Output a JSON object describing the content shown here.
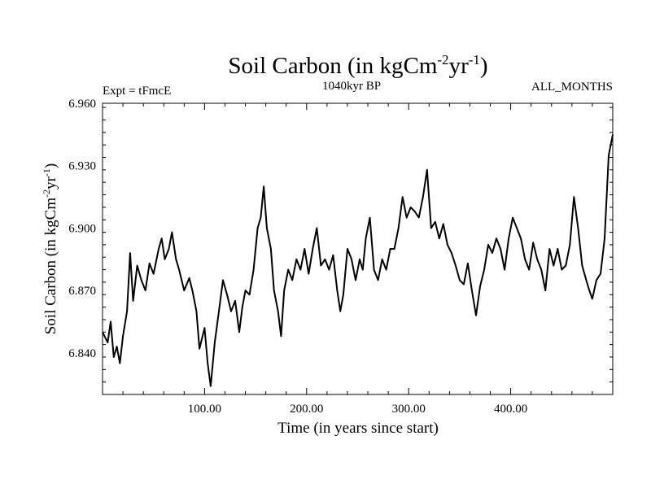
{
  "chart_data": {
    "type": "line",
    "title": {
      "prefix": "Soil Carbon (in kgCm",
      "exp1": "-2",
      "mid": "yr",
      "exp2": "-1",
      "suffix": ")"
    },
    "subtitle": "1040kyr BP",
    "left_annotation": "Expt = tFmcE",
    "right_annotation": "ALL_MONTHS",
    "xlabel": "Time (in years since start)",
    "ylabel": {
      "prefix": "Soil Carbon (in kgCm",
      "exp1": "-2",
      "mid": "yr",
      "exp2": "-1",
      "suffix": ")"
    },
    "xlim": [
      0,
      500
    ],
    "ylim": [
      6.82,
      6.96
    ],
    "xticks": [
      100,
      200,
      300,
      400
    ],
    "xtick_labels": [
      "100.00",
      "200.00",
      "300.00",
      "400.00"
    ],
    "yticks": [
      6.84,
      6.87,
      6.9,
      6.93,
      6.96
    ],
    "ytick_labels": [
      "6.840",
      "6.870",
      "6.900",
      "6.930",
      "6.960"
    ],
    "series": [
      {
        "name": "Soil Carbon",
        "color": "#000000",
        "x": [
          0,
          5,
          8,
          11,
          14,
          17,
          20,
          24,
          27,
          30,
          34,
          38,
          42,
          46,
          50,
          55,
          58,
          61,
          65,
          68,
          72,
          75,
          80,
          85,
          88,
          92,
          95,
          98,
          100,
          103,
          106,
          110,
          114,
          118,
          122,
          126,
          130,
          134,
          137,
          140,
          144,
          148,
          152,
          155,
          158,
          161,
          165,
          168,
          172,
          175,
          178,
          182,
          186,
          190,
          194,
          198,
          202,
          206,
          210,
          214,
          218,
          222,
          226,
          230,
          233,
          236,
          240,
          244,
          248,
          252,
          255,
          258,
          262,
          266,
          270,
          274,
          278,
          282,
          286,
          290,
          294,
          298,
          302,
          306,
          310,
          314,
          318,
          322,
          326,
          330,
          334,
          338,
          342,
          346,
          350,
          354,
          358,
          362,
          366,
          370,
          374,
          378,
          382,
          386,
          390,
          394,
          398,
          402,
          406,
          410,
          414,
          418,
          422,
          426,
          430,
          434,
          438,
          442,
          446,
          450,
          454,
          458,
          462,
          466,
          470,
          474,
          477,
          480,
          484,
          488,
          492,
          496,
          500
        ],
        "values": [
          6.85,
          6.845,
          6.855,
          6.838,
          6.843,
          6.835,
          6.848,
          6.86,
          6.888,
          6.865,
          6.882,
          6.875,
          6.87,
          6.883,
          6.878,
          6.89,
          6.895,
          6.885,
          6.89,
          6.898,
          6.885,
          6.88,
          6.87,
          6.876,
          6.87,
          6.86,
          6.842,
          6.848,
          6.852,
          6.835,
          6.824,
          6.845,
          6.86,
          6.875,
          6.868,
          6.86,
          6.865,
          6.85,
          6.862,
          6.87,
          6.868,
          6.88,
          6.9,
          6.905,
          6.92,
          6.9,
          6.89,
          6.87,
          6.86,
          6.848,
          6.87,
          6.88,
          6.875,
          6.885,
          6.88,
          6.89,
          6.878,
          6.89,
          6.9,
          6.882,
          6.885,
          6.88,
          6.887,
          6.87,
          6.86,
          6.868,
          6.89,
          6.885,
          6.875,
          6.885,
          6.88,
          6.895,
          6.905,
          6.88,
          6.875,
          6.885,
          6.88,
          6.89,
          6.89,
          6.9,
          6.915,
          6.905,
          6.91,
          6.908,
          6.905,
          6.915,
          6.928,
          6.9,
          6.903,
          6.895,
          6.902,
          6.892,
          6.888,
          6.882,
          6.875,
          6.873,
          6.883,
          6.87,
          6.858,
          6.872,
          6.88,
          6.892,
          6.888,
          6.895,
          6.89,
          6.88,
          6.895,
          6.905,
          6.9,
          6.895,
          6.885,
          6.88,
          6.893,
          6.885,
          6.88,
          6.87,
          6.89,
          6.882,
          6.89,
          6.88,
          6.882,
          6.892,
          6.915,
          6.9,
          6.882,
          6.875,
          6.87,
          6.866,
          6.875,
          6.878,
          6.895,
          6.935,
          6.945
        ]
      }
    ]
  }
}
